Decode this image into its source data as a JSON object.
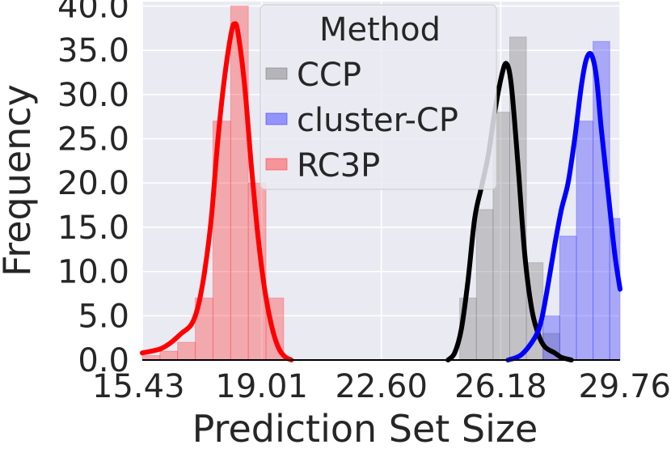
{
  "chart_data": {
    "type": "histogram",
    "xlabel": "Prediction Set Size",
    "ylabel": "Frequency",
    "xlim": [
      15.43,
      29.76
    ],
    "ylim": [
      0,
      40.5
    ],
    "x_ticks": [
      "15.43",
      "19.01",
      "22.60",
      "26.18",
      "29.76"
    ],
    "y_ticks": [
      "0.0",
      "5.0",
      "10.0",
      "15.0",
      "20.0",
      "25.0",
      "30.0",
      "35.0",
      "40.0"
    ],
    "grid": true,
    "legend": {
      "title": "Method",
      "placement": "top-center"
    },
    "series": [
      {
        "name": "CCP",
        "color": "#7f7f7f",
        "line_color": "#000000",
        "bins": [
          [
            24.95,
            25.45,
            7.0
          ],
          [
            25.45,
            25.95,
            17.0
          ],
          [
            25.95,
            26.45,
            28.0
          ],
          [
            26.45,
            26.95,
            36.5
          ],
          [
            26.95,
            27.45,
            11.0
          ],
          [
            27.45,
            27.95,
            3.0
          ]
        ],
        "kde": [
          [
            24.6,
            0.0
          ],
          [
            24.8,
            0.8
          ],
          [
            25.0,
            3.5
          ],
          [
            25.2,
            9.0
          ],
          [
            25.4,
            16.0
          ],
          [
            25.6,
            19.5
          ],
          [
            25.8,
            23.0
          ],
          [
            26.0,
            28.0
          ],
          [
            26.2,
            32.0
          ],
          [
            26.35,
            33.5
          ],
          [
            26.5,
            31.0
          ],
          [
            26.7,
            22.0
          ],
          [
            26.9,
            12.0
          ],
          [
            27.1,
            6.0
          ],
          [
            27.3,
            3.0
          ],
          [
            27.5,
            1.5
          ],
          [
            27.8,
            0.8
          ],
          [
            28.0,
            0.3
          ],
          [
            28.3,
            0.0
          ]
        ]
      },
      {
        "name": "cluster-CP",
        "color": "#3c3cff",
        "line_color": "#0000ff",
        "bins": [
          [
            27.45,
            27.95,
            5.0
          ],
          [
            27.95,
            28.45,
            14.0
          ],
          [
            28.45,
            28.95,
            27.0
          ],
          [
            28.95,
            29.45,
            36.0
          ],
          [
            29.45,
            29.76,
            16.0
          ]
        ],
        "kde": [
          [
            26.4,
            0.0
          ],
          [
            26.8,
            0.6
          ],
          [
            27.2,
            2.5
          ],
          [
            27.4,
            4.5
          ],
          [
            27.6,
            8.5
          ],
          [
            27.8,
            13.0
          ],
          [
            28.0,
            17.0
          ],
          [
            28.2,
            20.0
          ],
          [
            28.4,
            25.0
          ],
          [
            28.6,
            31.0
          ],
          [
            28.75,
            34.0
          ],
          [
            28.9,
            34.5
          ],
          [
            29.05,
            32.0
          ],
          [
            29.2,
            26.0
          ],
          [
            29.4,
            19.0
          ],
          [
            29.6,
            12.0
          ],
          [
            29.76,
            8.0
          ]
        ]
      },
      {
        "name": "RC3P",
        "color": "#ff4040",
        "line_color": "#ff0000",
        "bins": [
          [
            15.43,
            15.96,
            0.5
          ],
          [
            15.96,
            16.49,
            1.0
          ],
          [
            16.49,
            17.02,
            2.0
          ],
          [
            17.02,
            17.55,
            7.0
          ],
          [
            17.55,
            18.08,
            27.0
          ],
          [
            18.08,
            18.61,
            40.0
          ],
          [
            18.61,
            19.14,
            20.0
          ],
          [
            19.14,
            19.67,
            7.0
          ]
        ],
        "kde": [
          [
            15.43,
            0.8
          ],
          [
            15.7,
            1.0
          ],
          [
            16.0,
            1.3
          ],
          [
            16.3,
            2.0
          ],
          [
            16.6,
            3.0
          ],
          [
            16.9,
            4.0
          ],
          [
            17.1,
            6.0
          ],
          [
            17.3,
            10.0
          ],
          [
            17.5,
            16.0
          ],
          [
            17.7,
            25.0
          ],
          [
            17.9,
            32.0
          ],
          [
            18.1,
            37.0
          ],
          [
            18.2,
            38.0
          ],
          [
            18.3,
            37.0
          ],
          [
            18.5,
            31.0
          ],
          [
            18.7,
            22.0
          ],
          [
            18.9,
            14.0
          ],
          [
            19.1,
            8.0
          ],
          [
            19.3,
            4.0
          ],
          [
            19.5,
            1.5
          ],
          [
            19.7,
            0.4
          ],
          [
            19.9,
            0.0
          ]
        ]
      }
    ]
  }
}
